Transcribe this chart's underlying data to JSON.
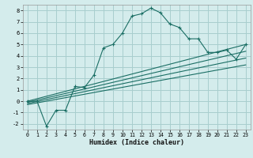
{
  "title": "",
  "xlabel": "Humidex (Indice chaleur)",
  "ylabel": "",
  "bg_color": "#d4ecec",
  "grid_color": "#a8cece",
  "line_color": "#1a6e64",
  "xlim": [
    -0.5,
    23.5
  ],
  "ylim": [
    -2.5,
    8.5
  ],
  "xticks": [
    0,
    1,
    2,
    3,
    4,
    5,
    6,
    7,
    8,
    9,
    10,
    11,
    12,
    13,
    14,
    15,
    16,
    17,
    18,
    19,
    20,
    21,
    22,
    23
  ],
  "yticks": [
    -2,
    -1,
    0,
    1,
    2,
    3,
    4,
    5,
    6,
    7,
    8
  ],
  "series": [
    {
      "x": [
        0,
        1,
        2,
        3,
        4,
        5,
        6,
        7,
        8,
        9,
        10,
        11,
        12,
        13,
        14,
        15,
        16,
        17,
        18,
        19,
        20,
        21,
        22,
        23
      ],
      "y": [
        0.0,
        0.0,
        -2.2,
        -0.8,
        -0.8,
        1.3,
        1.2,
        2.3,
        4.7,
        5.0,
        6.0,
        7.5,
        7.7,
        8.2,
        7.8,
        6.8,
        6.5,
        5.5,
        5.5,
        4.3,
        4.3,
        4.5,
        3.7,
        5.0
      ]
    },
    {
      "x": [
        0,
        23
      ],
      "y": [
        0.0,
        5.0
      ]
    },
    {
      "x": [
        0,
        23
      ],
      "y": [
        -0.1,
        4.4
      ]
    },
    {
      "x": [
        0,
        23
      ],
      "y": [
        -0.2,
        3.8
      ]
    },
    {
      "x": [
        0,
        23
      ],
      "y": [
        -0.3,
        3.2
      ]
    }
  ]
}
